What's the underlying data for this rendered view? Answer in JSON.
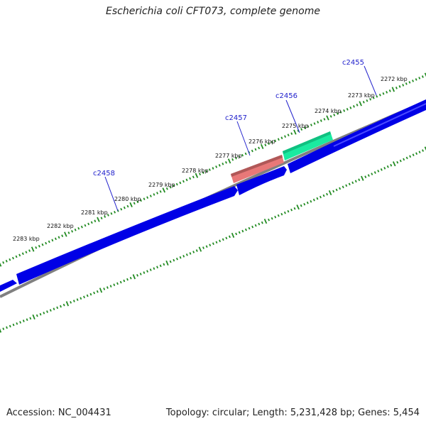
{
  "title": "Escherichia coli CFT073, complete genome",
  "footer": {
    "accession": "Accession: NC_004431",
    "summary": "Topology: circular; Length: 5,231,428 bp; Genes: 5,454"
  },
  "colors": {
    "background": "#ffffff",
    "tick": "#228b22",
    "forward_gene": "#0000e6",
    "backbone": "#808080",
    "rna_gene": "#e87878",
    "special_gene": "#1aeaa0",
    "gene_label": "#2020cc"
  },
  "kbp_labels": [
    "2272 kbp",
    "2273 kbp",
    "2274 kbp",
    "2275 kbp",
    "2276 kbp",
    "2277 kbp",
    "2278 kbp",
    "2279 kbp",
    "2280 kbp",
    "2281 kbp",
    "2282 kbp",
    "2283 kbp"
  ],
  "gene_labels": [
    "c2455",
    "c2456",
    "c2457",
    "c2458"
  ]
}
